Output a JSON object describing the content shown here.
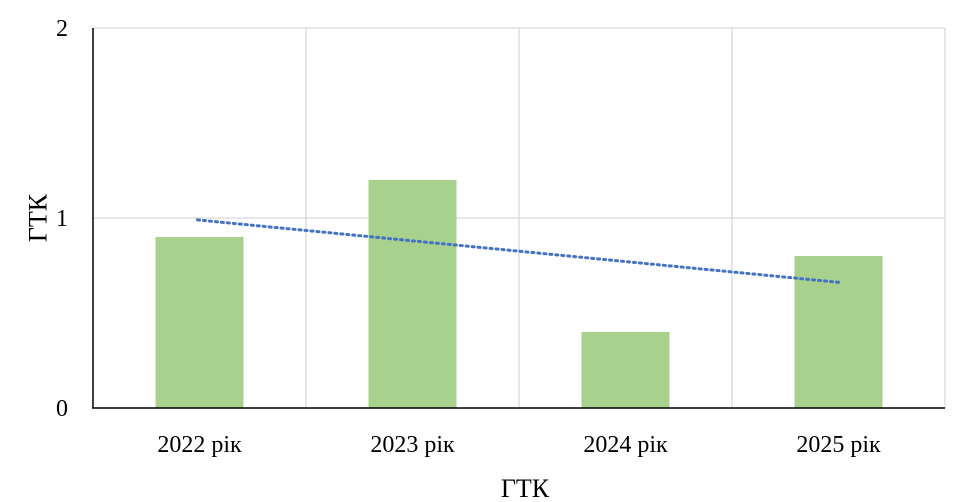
{
  "chart_data": {
    "type": "bar",
    "categories": [
      "2022 рік",
      "2023 рік",
      "2024 рік",
      "2025 рік"
    ],
    "values": [
      0.9,
      1.2,
      0.4,
      0.8
    ],
    "trendline": {
      "type": "linear",
      "style": "dotted",
      "start_value": 0.99,
      "end_value": 0.66
    },
    "xlabel": "ГТК",
    "ylabel": "ГТК",
    "ylim": [
      0,
      2
    ],
    "yticks": [
      "0",
      "1",
      "2"
    ],
    "grid": true,
    "legend": "none",
    "colors": {
      "bar": "#a9d18e",
      "trendline": "#4472c4",
      "grid": "#d9d9d9",
      "axis": "#000000"
    }
  }
}
